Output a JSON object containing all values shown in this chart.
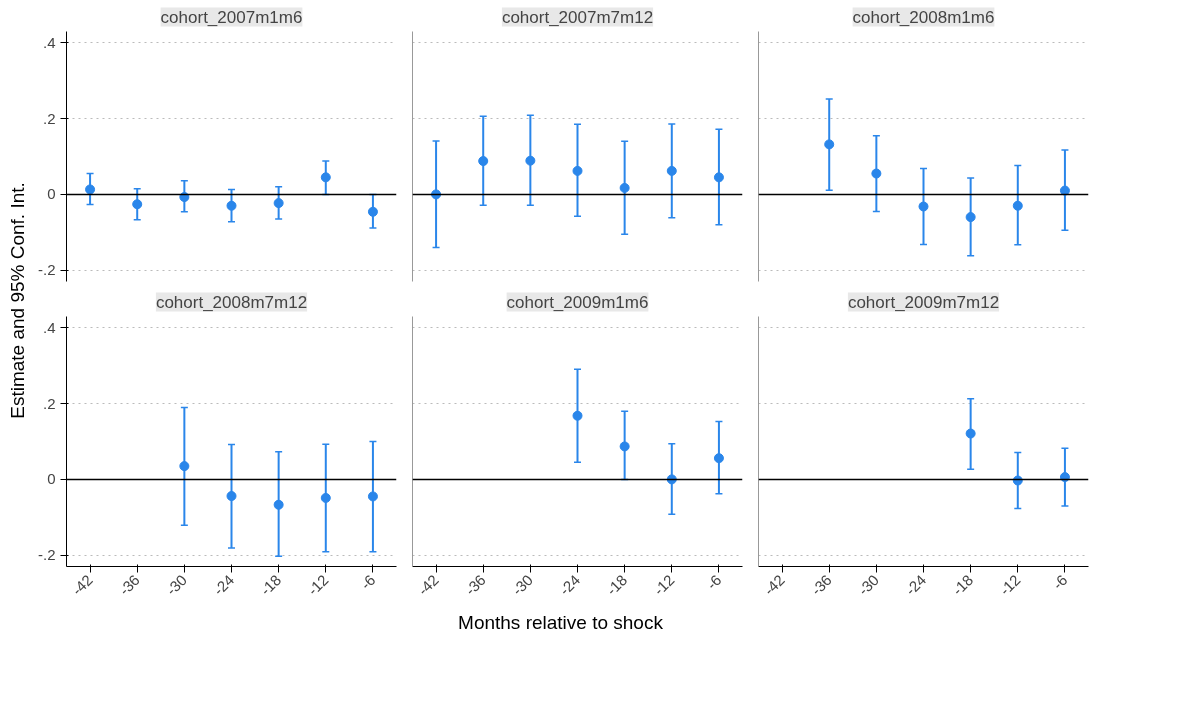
{
  "chart_data": [
    {
      "type": "scatter",
      "title": "cohort_2007m1m6",
      "ylabel": "Estimate and 95% Conf. Int.",
      "x": [
        -42,
        -36,
        -30,
        -24,
        -18,
        -12,
        -6
      ],
      "values": [
        0.013,
        -0.026,
        -0.007,
        -0.03,
        -0.023,
        0.045,
        -0.046
      ],
      "errors": [
        [
          -0.027,
          0.055
        ],
        [
          -0.067,
          0.015
        ],
        [
          -0.046,
          0.036
        ],
        [
          -0.072,
          0.013
        ],
        [
          -0.065,
          0.02
        ],
        [
          0.0,
          0.088
        ],
        [
          -0.089,
          0.0
        ]
      ],
      "color": "#2a86ea",
      "marker": "circle",
      "xlim": [
        -45,
        -3
      ],
      "ylim": [
        -0.23,
        0.43
      ],
      "yticks": [
        {
          "value": -0.2,
          "label": "-.2"
        },
        0,
        {
          "value": 0.2,
          "label": ".2"
        },
        {
          "value": 0.4,
          "label": ".4"
        }
      ],
      "grid": "y",
      "ref_lines": [
        {
          "axis": "y",
          "value": 0,
          "color": "#000000"
        }
      ],
      "tick_labels": "y"
    },
    {
      "type": "scatter",
      "title": "cohort_2007m7m12",
      "x": [
        -42,
        -36,
        -30,
        -24,
        -18,
        -12,
        -6
      ],
      "values": [
        0.0,
        0.088,
        0.089,
        0.062,
        0.017,
        0.062,
        0.045
      ],
      "errors": [
        [
          -0.14,
          0.141
        ],
        [
          -0.029,
          0.206
        ],
        [
          -0.029,
          0.209
        ],
        [
          -0.058,
          0.185
        ],
        [
          -0.105,
          0.14
        ],
        [
          -0.062,
          0.186
        ],
        [
          -0.08,
          0.172
        ]
      ],
      "color": "#2a86ea",
      "marker": "circle",
      "xlim": [
        -45,
        -3
      ],
      "ylim": [
        -0.23,
        0.43
      ],
      "yticks": [
        {
          "value": -0.2,
          "label": null
        },
        {
          "value": 0,
          "label": null
        },
        {
          "value": 0.2,
          "label": null
        },
        {
          "value": 0.4,
          "label": null
        }
      ],
      "grid": "y",
      "ref_lines": [
        {
          "axis": "y",
          "value": 0,
          "color": "#000000"
        }
      ],
      "tick_labels": false
    },
    {
      "type": "scatter",
      "title": "cohort_2008m1m6",
      "x": [
        -36,
        -30,
        -24,
        -18,
        -12,
        -6
      ],
      "values": [
        0.132,
        0.055,
        -0.032,
        -0.06,
        -0.03,
        0.01
      ],
      "errors": [
        [
          0.011,
          0.252
        ],
        [
          -0.045,
          0.155
        ],
        [
          -0.132,
          0.068
        ],
        [
          -0.162,
          0.043
        ],
        [
          -0.133,
          0.076
        ],
        [
          -0.095,
          0.117
        ]
      ],
      "color": "#2a86ea",
      "marker": "circle",
      "xlim": [
        -45,
        -3
      ],
      "ylim": [
        -0.23,
        0.43
      ],
      "yticks": [
        {
          "value": -0.2,
          "label": null
        },
        {
          "value": 0,
          "label": null
        },
        {
          "value": 0.2,
          "label": null
        },
        {
          "value": 0.4,
          "label": null
        }
      ],
      "grid": "y",
      "ref_lines": [
        {
          "axis": "y",
          "value": 0,
          "color": "#000000"
        }
      ],
      "tick_labels": false
    },
    {
      "type": "scatter",
      "title": "cohort_2008m7m12",
      "x": [
        -30,
        -24,
        -18,
        -12,
        -6
      ],
      "values": [
        0.035,
        -0.044,
        -0.067,
        -0.049,
        -0.045
      ],
      "errors": [
        [
          -0.121,
          0.19
        ],
        [
          -0.181,
          0.092
        ],
        [
          -0.203,
          0.073
        ],
        [
          -0.191,
          0.093
        ],
        [
          -0.191,
          0.1
        ]
      ],
      "color": "#2a86ea",
      "marker": "circle",
      "xlim": [
        -45,
        -3
      ],
      "ylim": [
        -0.23,
        0.43
      ],
      "xticks": [
        -42,
        -36,
        -30,
        -24,
        -18,
        -12,
        -6
      ],
      "yticks": [
        {
          "value": -0.2,
          "label": "-.2"
        },
        0,
        {
          "value": 0.2,
          "label": ".2"
        },
        {
          "value": 0.4,
          "label": ".4"
        }
      ],
      "grid": "y",
      "ref_lines": [
        {
          "axis": "y",
          "value": 0,
          "color": "#000000"
        }
      ]
    },
    {
      "type": "scatter",
      "title": "cohort_2009m1m6",
      "xlabel": "Months relative to shock",
      "x": [
        -24,
        -18,
        -12,
        -6
      ],
      "values": [
        0.168,
        0.087,
        0.0,
        0.056
      ],
      "errors": [
        [
          0.045,
          0.291
        ],
        [
          0.0,
          0.18
        ],
        [
          -0.092,
          0.094
        ],
        [
          -0.038,
          0.153
        ]
      ],
      "color": "#2a86ea",
      "marker": "circle",
      "xlim": [
        -45,
        -3
      ],
      "ylim": [
        -0.23,
        0.43
      ],
      "xticks": [
        -42,
        -36,
        -30,
        -24,
        -18,
        -12,
        -6
      ],
      "yticks": [
        {
          "value": -0.2,
          "label": null
        },
        {
          "value": 0,
          "label": null
        },
        {
          "value": 0.2,
          "label": null
        },
        {
          "value": 0.4,
          "label": null
        }
      ],
      "grid": "y",
      "ref_lines": [
        {
          "axis": "y",
          "value": 0,
          "color": "#000000"
        }
      ],
      "tick_labels": "x"
    },
    {
      "type": "scatter",
      "title": "cohort_2009m7m12",
      "x": [
        -18,
        -12,
        -6
      ],
      "values": [
        0.121,
        -0.003,
        0.006
      ],
      "errors": [
        [
          0.027,
          0.213
        ],
        [
          -0.077,
          0.071
        ],
        [
          -0.07,
          0.082
        ]
      ],
      "color": "#2a86ea",
      "marker": "circle",
      "xlim": [
        -45,
        -3
      ],
      "ylim": [
        -0.23,
        0.43
      ],
      "xticks": [
        -42,
        -36,
        -30,
        -24,
        -18,
        -12,
        -6
      ],
      "yticks": [
        {
          "value": -0.2,
          "label": null
        },
        {
          "value": 0,
          "label": null
        },
        {
          "value": 0.2,
          "label": null
        },
        {
          "value": 0.4,
          "label": null
        }
      ],
      "grid": "y",
      "ref_lines": [
        {
          "axis": "y",
          "value": 0,
          "color": "#000000"
        }
      ],
      "tick_labels": "x"
    }
  ]
}
